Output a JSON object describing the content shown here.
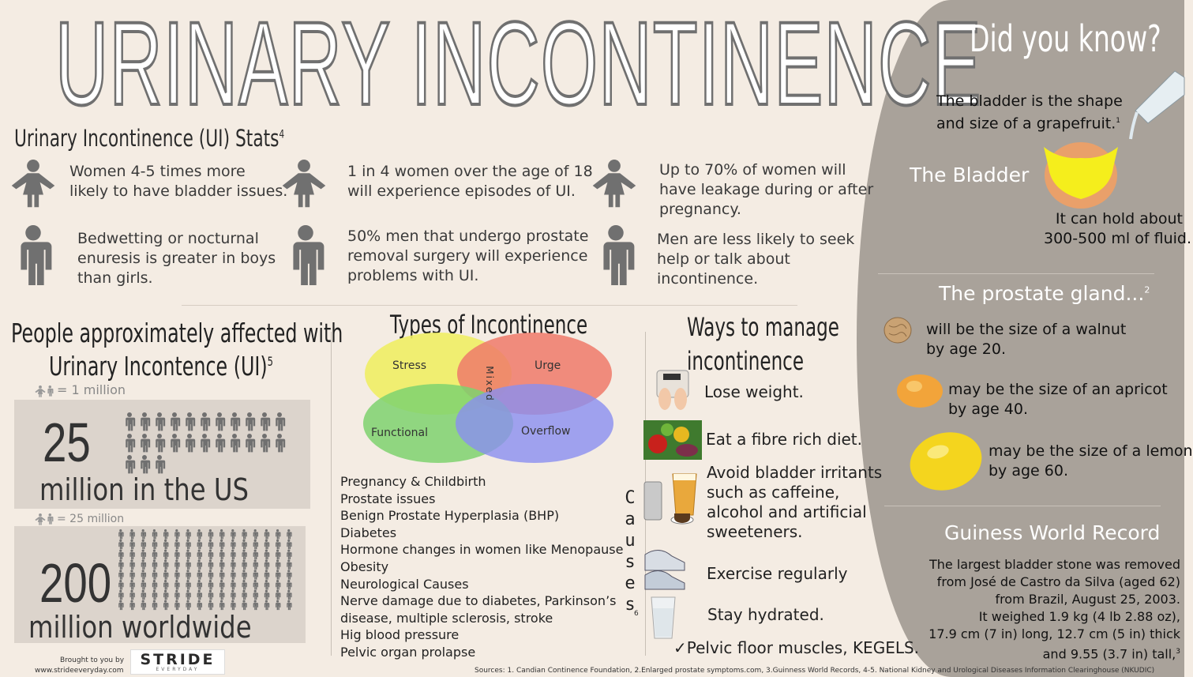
{
  "title": "URINARY INCONTINENCE",
  "stats": {
    "heading": "Urinary Incontinence (UI) Stats",
    "heading_sup": "4",
    "items": [
      {
        "icon": "woman-icon",
        "lines": [
          "Women 4-5 times more",
          "likely to have bladder issues."
        ]
      },
      {
        "icon": "woman-icon",
        "lines": [
          "1 in 4 women over the age of 18",
          "will experience episodes of UI."
        ]
      },
      {
        "icon": "woman-icon",
        "lines": [
          "Up to 70% of women will",
          "have leakage during or after",
          "pregnancy."
        ]
      },
      {
        "icon": "man-icon",
        "lines": [
          "Bedwetting or nocturnal",
          "enuresis is greater in boys",
          "than girls."
        ]
      },
      {
        "icon": "man-icon",
        "lines": [
          "50% men that undergo prostate",
          "removal surgery will experience",
          "problems with UI."
        ]
      },
      {
        "icon": "man-icon",
        "lines": [
          "Men are less likely to seek",
          "help or talk about",
          "incontinence."
        ]
      }
    ]
  },
  "affected": {
    "heading_line1": "People approximately affected with",
    "heading_line2": "Urinary Incontence (UI)",
    "heading_sup": "5",
    "legend1": "= 1 million",
    "legend2": "= 25 million",
    "us_number": "25",
    "us_label": "million in the US",
    "world_number": "200",
    "world_label": "million worldwide"
  },
  "types": {
    "heading": "Types of Incontinence",
    "circles": [
      "Stress",
      "Urge",
      "Functional",
      "Overflow"
    ],
    "center": "Mixed"
  },
  "causes": {
    "label": "Causes",
    "sup": "6",
    "items": [
      "Pregnancy & Childbirth",
      "Prostate issues",
      "Benign Prostate Hyperplasia (BHP)",
      "Diabetes",
      "Hormone changes in women like Menopause",
      "Obesity",
      "Neurological Causes",
      "Nerve damage due to diabetes, Parkinson’s",
      "disease, multiple sclerosis, stroke",
      "Hig blood pressure",
      "Pelvic organ prolapse"
    ]
  },
  "manage": {
    "heading_line1": "Ways to manage",
    "heading_line2": "incontinence",
    "items": [
      {
        "icon": "scale-icon",
        "lines": [
          "Lose weight."
        ]
      },
      {
        "icon": "vegetables-icon",
        "lines": [
          "Eat a fibre rich diet."
        ]
      },
      {
        "icon": "drinks-icon",
        "lines": [
          "Avoid bladder irritants",
          "such as caffeine,",
          "alcohol and artificial",
          "sweeteners."
        ]
      },
      {
        "icon": "sneakers-icon",
        "lines": [
          "Exercise regularly"
        ]
      },
      {
        "icon": "water-glass-icon",
        "lines": [
          "Stay hydrated."
        ]
      }
    ],
    "kegels": "Pelvic floor muscles, KEGELS."
  },
  "did_you_know": {
    "heading": "Did you know?",
    "bladder_fact": [
      "The bladder is the shape",
      "and size of a grapefruit."
    ],
    "bladder_sup": "1",
    "bladder_label": "The Bladder",
    "bladder_capacity": [
      "It can hold about",
      "300-500 ml of fluid."
    ],
    "prostate_heading": "The prostate gland...",
    "prostate_sup": "2",
    "prostate_items": [
      {
        "icon": "walnut-icon",
        "lines": [
          "will be the size of a walnut",
          "by age 20."
        ]
      },
      {
        "icon": "apricot-icon",
        "lines": [
          "may be the size of an apricot",
          "by age 40."
        ]
      },
      {
        "icon": "lemon-icon",
        "lines": [
          "may be the size of a lemon",
          "by age 60."
        ]
      }
    ],
    "record_heading": "Guiness World Record",
    "record_lines": [
      "The largest bladder stone was removed",
      "from José de Castro da Silva (aged 62)",
      "from Brazil, August 25, 2003.",
      "It weighed 1.9 kg (4 lb 2.88 oz),",
      "17.9 cm (7 in) long, 12.7 cm (5 in) thick",
      "and 9.55 (3.7 in) tall,"
    ],
    "record_sup": "3"
  },
  "footer": {
    "brought": "Brought to you by",
    "url": "www.strideeveryday.com",
    "brand": "STRIDE",
    "brand_sub": "EVERYDAY",
    "sources": "Sources: 1. Candian Continence Foundation, 2.Enlarged prostate symptoms.com, 3.Guinness World Records, 4-5. National Kidney and Urological Diseases Information Clearinghouse (NKUDIC)"
  },
  "colors": {
    "panel": "#a9a29a",
    "stress": "#f0ee64",
    "urge": "#ee7a6a",
    "functional": "#7ed26e",
    "overflow": "#8a8ef0",
    "bladder": "#f5ee1c"
  }
}
